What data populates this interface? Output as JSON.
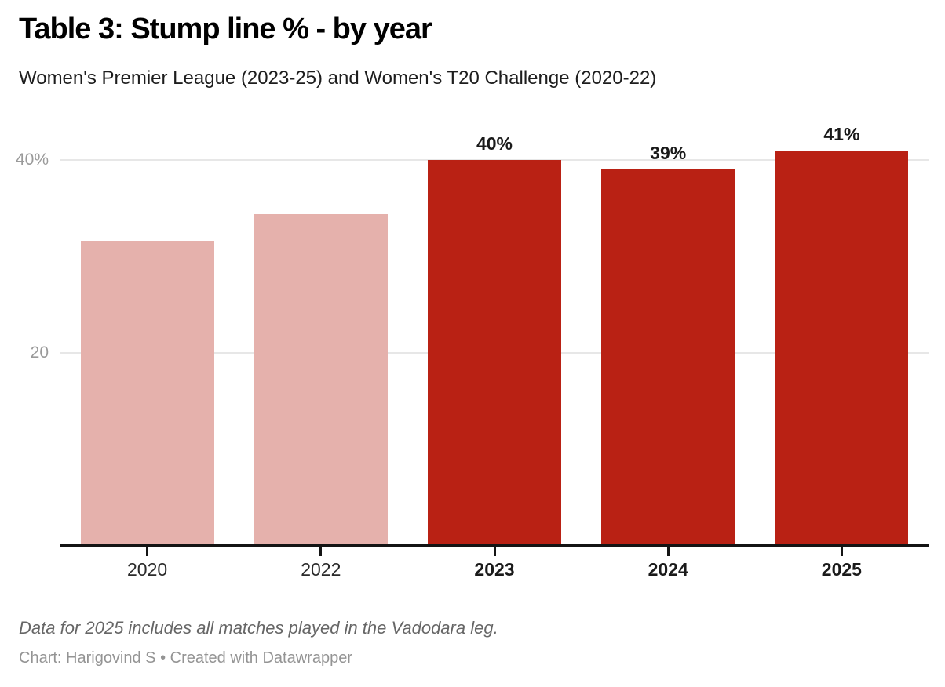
{
  "header": {
    "title": "Table 3: Stump line % - by year",
    "subtitle": "Women's Premier League (2023-25) and Women's T20 Challenge (2020-22)"
  },
  "footer": {
    "note": "Data for 2025 includes all matches played in the Vadodara leg.",
    "credit": "Chart: Harigovind S • Created with Datawrapper"
  },
  "colors": {
    "bar_light_pink": "#e5b1ac",
    "bar_dark_red": "#b92114",
    "gridline": "#e7e7e7",
    "axis": "#141414",
    "y_tick_label": "#9a9a9a",
    "title_text": "#000000",
    "note_text": "#666666",
    "credit_text": "#949494"
  },
  "chart_data": {
    "type": "bar",
    "title": "Table 3: Stump line % - by year",
    "subtitle": "Women's Premier League (2023-25) and Women's T20 Challenge (2020-22)",
    "categories": [
      "2020",
      "2022",
      "2023",
      "2024",
      "2025"
    ],
    "values": [
      31.6,
      34.4,
      40,
      39,
      41
    ],
    "bar_value_labels": [
      "",
      "",
      "40%",
      "39%",
      "41%"
    ],
    "bar_colors": [
      "#e5b1ac",
      "#e5b1ac",
      "#b92114",
      "#b92114",
      "#b92114"
    ],
    "bold_x_labels": [
      false,
      false,
      true,
      true,
      true
    ],
    "xlabel": "",
    "ylabel": "",
    "unit": "%",
    "ylim": [
      0,
      44
    ],
    "yticks": [
      {
        "value": 20,
        "label": "20"
      },
      {
        "value": 40,
        "label": "40%"
      }
    ],
    "grid": "horizontal",
    "legend": false,
    "note": "Data for 2025 includes all matches played in the Vadodara leg.",
    "credit": "Chart: Harigovind S • Created with Datawrapper"
  }
}
